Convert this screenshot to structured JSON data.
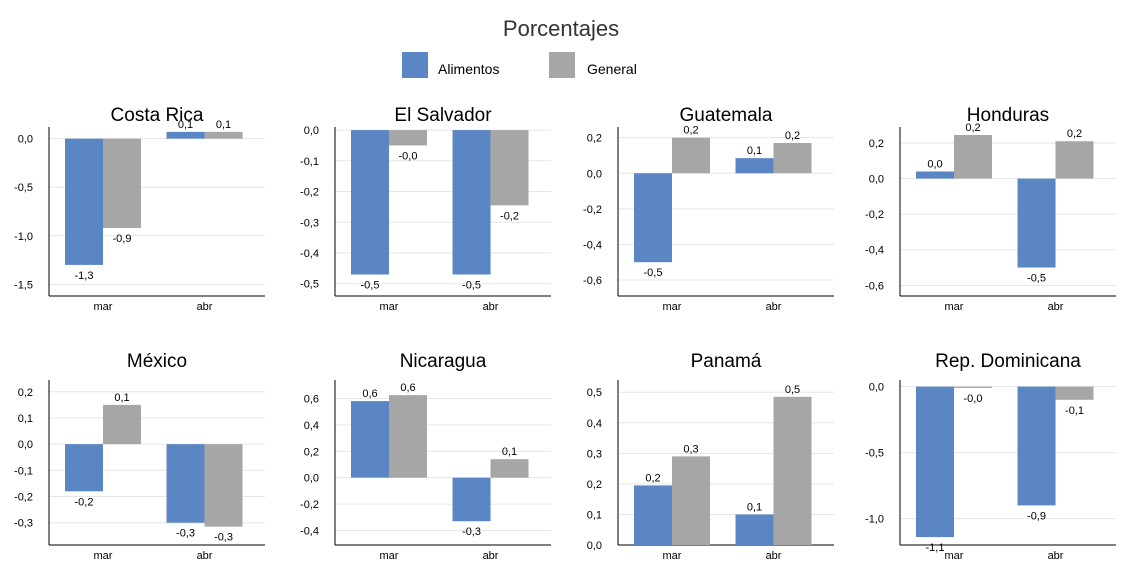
{
  "chart_data": {
    "type": "bar",
    "title": "Porcentajes",
    "legend": {
      "placement": "top-center",
      "entries": [
        "Alimentos",
        "General"
      ]
    },
    "colors": {
      "Alimentos": "#5b86c4",
      "General": "#a6a6a6"
    },
    "grid": true,
    "categories": [
      "mar",
      "abr"
    ],
    "panels": [
      {
        "title": "Costa Rica",
        "ylim": [
          -1.62,
          0.12
        ],
        "yticks": [
          0.0,
          -0.5,
          -1.0,
          -1.5
        ],
        "tick_labels": [
          "0,0",
          "-0,5",
          "-1,0",
          "-1,5"
        ],
        "series": [
          {
            "name": "Alimentos",
            "values": [
              -1.3,
              0.07
            ],
            "labels": [
              "-1,3",
              "0,1"
            ]
          },
          {
            "name": "General",
            "values": [
              -0.92,
              0.07
            ],
            "labels": [
              "-0,9",
              "0,1"
            ]
          }
        ]
      },
      {
        "title": "El Salvador",
        "ylim": [
          -0.54,
          0.01
        ],
        "yticks": [
          0.0,
          -0.1,
          -0.2,
          -0.3,
          -0.4,
          -0.5
        ],
        "tick_labels": [
          "0,0",
          "-0,1",
          "-0,2",
          "-0,3",
          "-0,4",
          "-0,5"
        ],
        "series": [
          {
            "name": "Alimentos",
            "values": [
              -0.47,
              -0.47
            ],
            "labels": [
              "-0,5",
              "-0,5"
            ]
          },
          {
            "name": "General",
            "values": [
              -0.05,
              -0.245
            ],
            "labels": [
              "-0,0",
              "-0,2"
            ]
          }
        ]
      },
      {
        "title": "Guatemala",
        "ylim": [
          -0.69,
          0.26
        ],
        "yticks": [
          0.2,
          0.0,
          -0.2,
          -0.4,
          -0.6
        ],
        "tick_labels": [
          "0,2",
          "0,0",
          "-0,2",
          "-0,4",
          "-0,6"
        ],
        "series": [
          {
            "name": "Alimentos",
            "values": [
              -0.5,
              0.085
            ],
            "labels": [
              "-0,5",
              "0,1"
            ]
          },
          {
            "name": "General",
            "values": [
              0.2,
              0.17
            ],
            "labels": [
              "0,2",
              "0,2"
            ]
          }
        ]
      },
      {
        "title": "Honduras",
        "ylim": [
          -0.66,
          0.29
        ],
        "yticks": [
          0.2,
          0.0,
          -0.2,
          -0.4,
          -0.6
        ],
        "tick_labels": [
          "0,2",
          "0,0",
          "-0,2",
          "-0,4",
          "-0,6"
        ],
        "series": [
          {
            "name": "Alimentos",
            "values": [
              0.04,
              -0.5
            ],
            "labels": [
              "0,0",
              "-0,5"
            ]
          },
          {
            "name": "General",
            "values": [
              0.245,
              0.21
            ],
            "labels": [
              "0,2",
              "0,2"
            ]
          }
        ]
      },
      {
        "title": "México",
        "ylim": [
          -0.385,
          0.245
        ],
        "yticks": [
          0.2,
          0.1,
          0.0,
          -0.1,
          -0.2,
          -0.3
        ],
        "tick_labels": [
          "0,2",
          "0,1",
          "0,0",
          "-0,1",
          "-0,2",
          "-0,3"
        ],
        "series": [
          {
            "name": "Alimentos",
            "values": [
              -0.18,
              -0.3
            ],
            "labels": [
              "-0,2",
              "-0,3"
            ]
          },
          {
            "name": "General",
            "values": [
              0.15,
              -0.315
            ],
            "labels": [
              "0,1",
              "-0,3"
            ]
          }
        ]
      },
      {
        "title": "Nicaragua",
        "ylim": [
          -0.51,
          0.74
        ],
        "yticks": [
          0.6,
          0.4,
          0.2,
          0.0,
          -0.2,
          -0.4
        ],
        "tick_labels": [
          "0,6",
          "0,4",
          "0,2",
          "0,0",
          "-0,2",
          "-0,4"
        ],
        "series": [
          {
            "name": "Alimentos",
            "values": [
              0.58,
              -0.33
            ],
            "labels": [
              "0,6",
              "-0,3"
            ]
          },
          {
            "name": "General",
            "values": [
              0.625,
              0.14
            ],
            "labels": [
              "0,6",
              "0,1"
            ]
          }
        ]
      },
      {
        "title": "Panamá",
        "ylim": [
          0.0,
          0.54
        ],
        "yticks": [
          0.5,
          0.4,
          0.3,
          0.2,
          0.1,
          0.0
        ],
        "tick_labels": [
          "0,5",
          "0,4",
          "0,3",
          "0,2",
          "0,1",
          "0,0"
        ],
        "series": [
          {
            "name": "Alimentos",
            "values": [
              0.195,
              0.1
            ],
            "labels": [
              "0,2",
              "0,1"
            ]
          },
          {
            "name": "General",
            "values": [
              0.29,
              0.485
            ],
            "labels": [
              "0,3",
              "0,5"
            ]
          }
        ]
      },
      {
        "title": "Rep. Dominicana",
        "ylim": [
          -1.2,
          0.05
        ],
        "yticks": [
          0.0,
          -0.5,
          -1.0
        ],
        "tick_labels": [
          "0,0",
          "-0,5",
          "-1,0"
        ],
        "series": [
          {
            "name": "Alimentos",
            "values": [
              -1.14,
              -0.9
            ],
            "labels": [
              "-1,1",
              "-0,9"
            ]
          },
          {
            "name": "General",
            "values": [
              -0.01,
              -0.1
            ],
            "labels": [
              "-0,0",
              "-0,1"
            ]
          }
        ]
      }
    ]
  }
}
